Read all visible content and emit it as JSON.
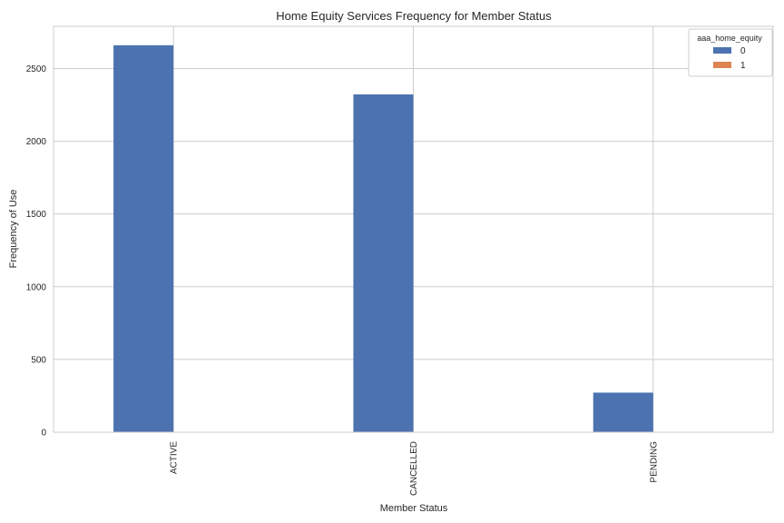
{
  "chart_data": {
    "type": "bar",
    "title": "Home Equity Services Frequency for Member Status",
    "xlabel": "Member Status",
    "ylabel": "Frequency of Use",
    "categories": [
      "ACTIVE",
      "CANCELLED",
      "PENDING"
    ],
    "series": [
      {
        "name": "0",
        "values": [
          2660,
          2322,
          272
        ],
        "color": "#4c72b0"
      },
      {
        "name": "1",
        "values": [
          0,
          0,
          0
        ],
        "color": "#dd8452"
      }
    ],
    "ylim": [
      0,
      2790
    ],
    "yticks": [
      0,
      500,
      1000,
      1500,
      2000,
      2500
    ],
    "grid": true,
    "legend": {
      "title": "aaa_home_equity",
      "placement": "top-right"
    }
  }
}
